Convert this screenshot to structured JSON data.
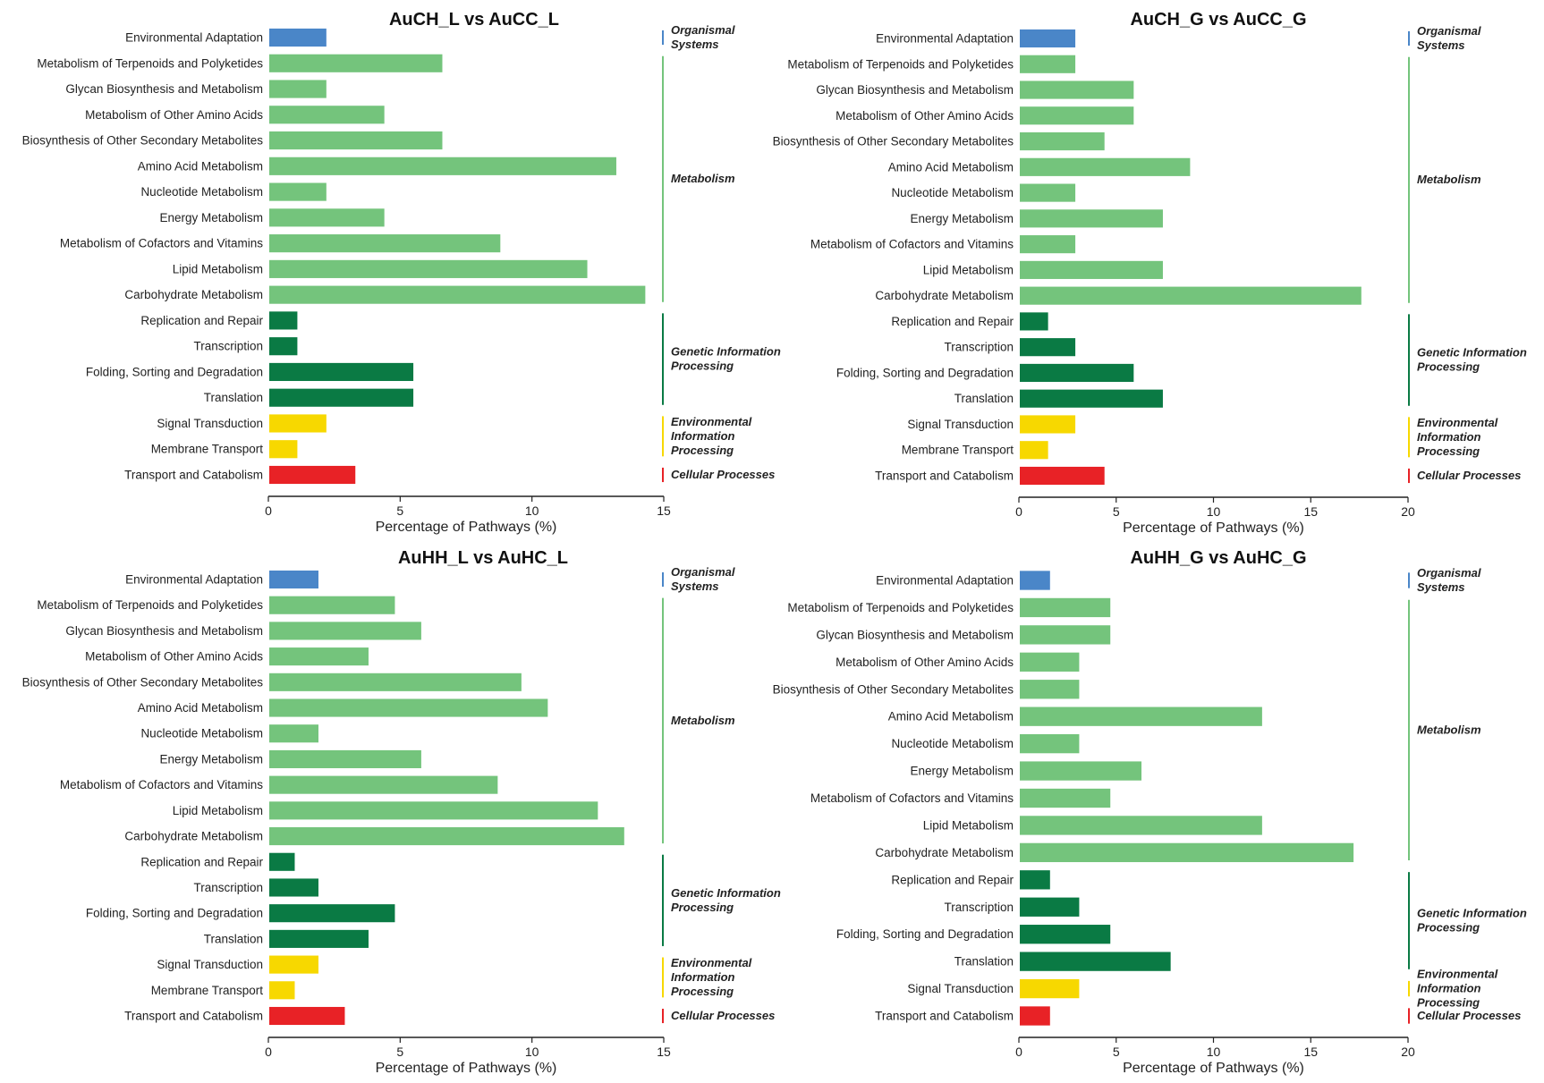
{
  "colors": {
    "Organismal Systems": "#4a86c8",
    "Metabolism": "#74c47c",
    "Genetic Information Processing": "#0a7a44",
    "Environmental Information Processing": "#f7d800",
    "Cellular Processes": "#e82226"
  },
  "chart_data": [
    {
      "type": "bar",
      "title": "AuCH_L vs AuCC_L",
      "xlabel": "Percentage of Pathways (%)",
      "xlim": [
        0,
        15
      ],
      "xticks": [
        0,
        5,
        10,
        15
      ],
      "categories": [
        "Environmental Adaptation",
        "Metabolism of Terpenoids and Polyketides",
        "Glycan Biosynthesis and Metabolism",
        "Metabolism of Other Amino Acids",
        "Biosynthesis of Other Secondary Metabolites",
        "Amino Acid Metabolism",
        "Nucleotide Metabolism",
        "Energy Metabolism",
        "Metabolism of Cofactors and Vitamins",
        "Lipid Metabolism",
        "Carbohydrate Metabolism",
        "Replication and Repair",
        "Transcription",
        "Folding, Sorting and Degradation",
        "Translation",
        "Signal Transduction",
        "Membrane Transport",
        "Transport and Catabolism"
      ],
      "values": [
        2.2,
        6.6,
        2.2,
        4.4,
        6.6,
        13.2,
        2.2,
        4.4,
        8.8,
        12.1,
        14.3,
        1.1,
        1.1,
        5.5,
        5.5,
        2.2,
        1.1,
        3.3
      ],
      "groups": [
        {
          "name": "Organismal Systems",
          "label": [
            "Organismal",
            "Systems"
          ],
          "start": 0,
          "end": 0
        },
        {
          "name": "Metabolism",
          "label": [
            "Metabolism"
          ],
          "start": 1,
          "end": 10
        },
        {
          "name": "Genetic Information Processing",
          "label": [
            "Genetic Information",
            "Processing"
          ],
          "start": 11,
          "end": 14
        },
        {
          "name": "Environmental Information Processing",
          "label": [
            "Environmental",
            "Information",
            "Processing"
          ],
          "start": 15,
          "end": 16
        },
        {
          "name": "Cellular Processes",
          "label": [
            "Cellular Processes"
          ],
          "start": 17,
          "end": 17
        }
      ]
    },
    {
      "type": "bar",
      "title": "AuCH_G vs AuCC_G",
      "xlabel": "Percentage of Pathways (%)",
      "xlim": [
        0,
        20
      ],
      "xticks": [
        0,
        5,
        10,
        15,
        20
      ],
      "categories": [
        "Environmental Adaptation",
        "Metabolism of Terpenoids and Polyketides",
        "Glycan Biosynthesis and Metabolism",
        "Metabolism of Other Amino Acids",
        "Biosynthesis of Other Secondary Metabolites",
        "Amino Acid Metabolism",
        "Nucleotide Metabolism",
        "Energy Metabolism",
        "Metabolism of Cofactors and Vitamins",
        "Lipid Metabolism",
        "Carbohydrate Metabolism",
        "Replication and Repair",
        "Transcription",
        "Folding, Sorting and Degradation",
        "Translation",
        "Signal Transduction",
        "Membrane Transport",
        "Transport and Catabolism"
      ],
      "values": [
        2.9,
        2.9,
        5.9,
        5.9,
        4.4,
        8.8,
        2.9,
        7.4,
        2.9,
        7.4,
        17.6,
        1.5,
        2.9,
        5.9,
        7.4,
        2.9,
        1.5,
        4.4
      ],
      "groups": [
        {
          "name": "Organismal Systems",
          "label": [
            "Organismal",
            "Systems"
          ],
          "start": 0,
          "end": 0
        },
        {
          "name": "Metabolism",
          "label": [
            "Metabolism"
          ],
          "start": 1,
          "end": 10
        },
        {
          "name": "Genetic Information Processing",
          "label": [
            "Genetic Information",
            "Processing"
          ],
          "start": 11,
          "end": 14
        },
        {
          "name": "Environmental Information Processing",
          "label": [
            "Environmental",
            "Information",
            "Processing"
          ],
          "start": 15,
          "end": 16
        },
        {
          "name": "Cellular Processes",
          "label": [
            "Cellular Processes"
          ],
          "start": 17,
          "end": 17
        }
      ]
    },
    {
      "type": "bar",
      "title": "AuHH_L vs AuHC_L",
      "xlabel": "Percentage of Pathways (%)",
      "xlim": [
        0,
        15
      ],
      "xticks": [
        0,
        5,
        10,
        15
      ],
      "categories": [
        "Environmental Adaptation",
        "Metabolism of Terpenoids and Polyketides",
        "Glycan Biosynthesis and Metabolism",
        "Metabolism of Other Amino Acids",
        "Biosynthesis of Other Secondary Metabolites",
        "Amino Acid Metabolism",
        "Nucleotide Metabolism",
        "Energy Metabolism",
        "Metabolism of Cofactors and Vitamins",
        "Lipid Metabolism",
        "Carbohydrate Metabolism",
        "Replication and Repair",
        "Transcription",
        "Folding, Sorting and Degradation",
        "Translation",
        "Signal Transduction",
        "Membrane Transport",
        "Transport and Catabolism"
      ],
      "values": [
        1.9,
        4.8,
        5.8,
        3.8,
        9.6,
        10.6,
        1.9,
        5.8,
        8.7,
        12.5,
        13.5,
        1.0,
        1.9,
        4.8,
        3.8,
        1.9,
        1.0,
        2.9
      ],
      "groups": [
        {
          "name": "Organismal Systems",
          "label": [
            "Organismal",
            "Systems"
          ],
          "start": 0,
          "end": 0
        },
        {
          "name": "Metabolism",
          "label": [
            "Metabolism"
          ],
          "start": 1,
          "end": 10
        },
        {
          "name": "Genetic Information Processing",
          "label": [
            "Genetic Information",
            "Processing"
          ],
          "start": 11,
          "end": 14
        },
        {
          "name": "Environmental Information Processing",
          "label": [
            "Environmental",
            "Information",
            "Processing"
          ],
          "start": 15,
          "end": 16
        },
        {
          "name": "Cellular Processes",
          "label": [
            "Cellular Processes"
          ],
          "start": 17,
          "end": 17
        }
      ]
    },
    {
      "type": "bar",
      "title": "AuHH_G vs AuHC_G",
      "xlabel": "Percentage of Pathways (%)",
      "xlim": [
        0,
        20
      ],
      "xticks": [
        0,
        5,
        10,
        15,
        20
      ],
      "categories": [
        "Environmental Adaptation",
        "Metabolism of Terpenoids and Polyketides",
        "Glycan Biosynthesis and Metabolism",
        "Metabolism of Other Amino Acids",
        "Biosynthesis of Other Secondary Metabolites",
        "Amino Acid Metabolism",
        "Nucleotide Metabolism",
        "Energy Metabolism",
        "Metabolism of Cofactors and Vitamins",
        "Lipid Metabolism",
        "Carbohydrate Metabolism",
        "Replication and Repair",
        "Transcription",
        "Folding, Sorting and Degradation",
        "Translation",
        "Signal Transduction",
        "Transport and Catabolism"
      ],
      "values": [
        1.6,
        4.7,
        4.7,
        3.1,
        3.1,
        12.5,
        3.1,
        6.3,
        4.7,
        12.5,
        17.2,
        1.6,
        3.1,
        4.7,
        7.8,
        3.1,
        1.6
      ],
      "groups": [
        {
          "name": "Organismal Systems",
          "label": [
            "Organismal",
            "Systems"
          ],
          "start": 0,
          "end": 0
        },
        {
          "name": "Metabolism",
          "label": [
            "Metabolism"
          ],
          "start": 1,
          "end": 10
        },
        {
          "name": "Genetic Information Processing",
          "label": [
            "Genetic Information",
            "Processing"
          ],
          "start": 11,
          "end": 14
        },
        {
          "name": "Environmental Information Processing",
          "label": [
            "Environmental",
            "Information",
            "Processing"
          ],
          "start": 15,
          "end": 15
        },
        {
          "name": "Cellular Processes",
          "label": [
            "Cellular Processes"
          ],
          "start": 16,
          "end": 16
        }
      ]
    }
  ]
}
